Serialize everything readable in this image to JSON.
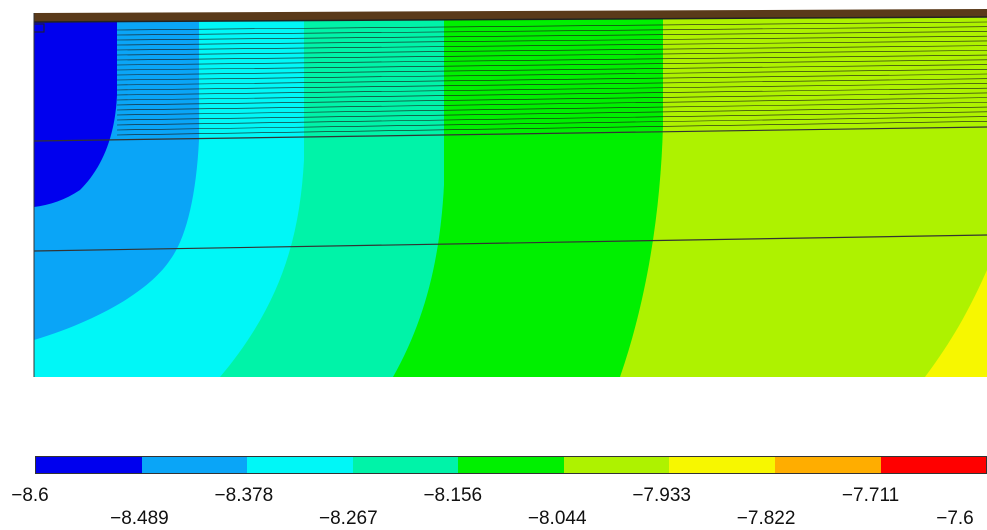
{
  "contour_plot": {
    "fill_colors": [
      "#0000ee",
      "#0aa5f7",
      "#00f7f7",
      "#00f3a8",
      "#00f000",
      "#aef200",
      "#f7f700",
      "#ffad00",
      "#ff0000"
    ],
    "mesh_line_color": "#1a1a1a",
    "top_band_color": "#5a3a1a"
  },
  "colorbar": {
    "colors": [
      "#0000ee",
      "#0aa5f7",
      "#00f7f7",
      "#00f3a8",
      "#00f000",
      "#aef200",
      "#f7f700",
      "#ffad00",
      "#ff0000"
    ],
    "labels": [
      "−8.6",
      "−8.489",
      "−8.378",
      "−8.267",
      "−8.156",
      "−8.044",
      "−7.933",
      "−7.822",
      "−7.711",
      "−7.6"
    ]
  }
}
